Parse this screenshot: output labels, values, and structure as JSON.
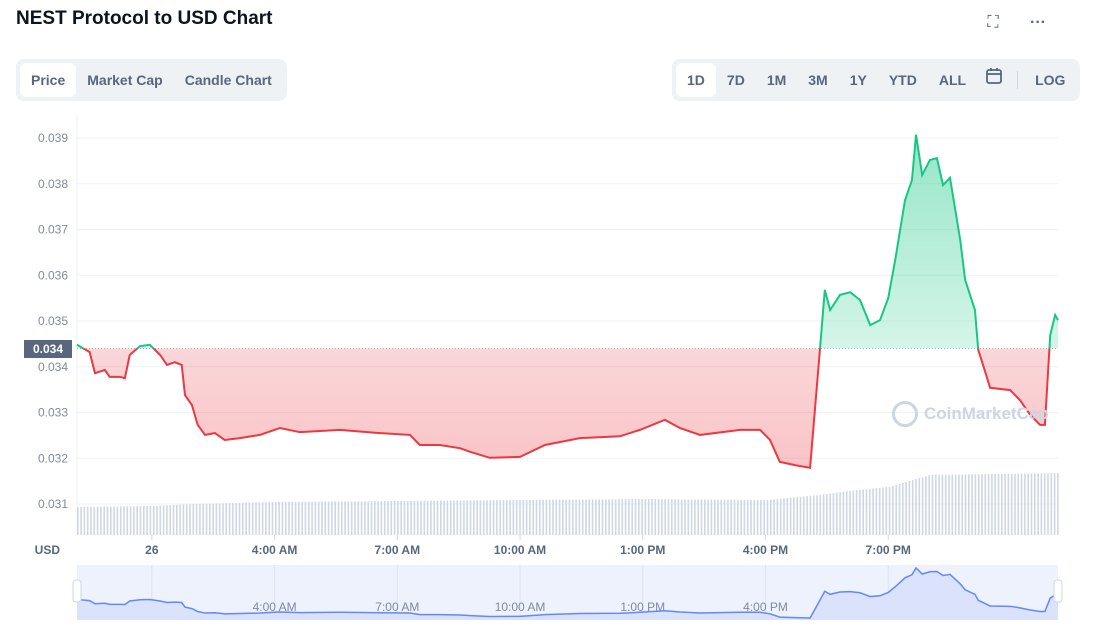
{
  "header": {
    "title": "NEST Protocol to USD Chart",
    "fullscreen_icon": "expand-icon",
    "more_icon": "more-icon"
  },
  "tabs": [
    {
      "label": "Price",
      "active": true
    },
    {
      "label": "Market Cap"
    },
    {
      "label": "Candle Chart"
    }
  ],
  "ranges": [
    {
      "label": "1D",
      "active": true
    },
    {
      "label": "7D"
    },
    {
      "label": "1M"
    },
    {
      "label": "3M"
    },
    {
      "label": "1Y"
    },
    {
      "label": "YTD"
    },
    {
      "label": "ALL"
    }
  ],
  "calendar_icon": "calendar-icon",
  "log_label": "LOG",
  "watermark": "CoinMarketCap",
  "colors": {
    "up": "#16c784",
    "down": "#ea3943",
    "volume": "#cfd6e4",
    "navigator": "#6188ff"
  },
  "chart_data": {
    "type": "line",
    "title": "NEST Protocol to USD Chart",
    "ylabel": "USD",
    "ylim": [
      0.0308,
      0.0395
    ],
    "yticks": [
      "0.039",
      "0.038",
      "0.037",
      "0.036",
      "0.035",
      "0.034",
      "0.033",
      "0.032",
      "0.031"
    ],
    "ytick_values": [
      0.039,
      0.038,
      0.037,
      0.036,
      0.035,
      0.034,
      0.033,
      0.032,
      0.031
    ],
    "xlim_hours": [
      -1.83,
      22.15
    ],
    "xticks": [
      {
        "label": "26",
        "h": 0
      },
      {
        "label": "4:00 AM",
        "h": 3
      },
      {
        "label": "7:00 AM",
        "h": 6
      },
      {
        "label": "10:00 AM",
        "h": 9
      },
      {
        "label": "1:00 PM",
        "h": 12
      },
      {
        "label": "4:00 PM",
        "h": 15
      },
      {
        "label": "7:00 PM",
        "h": 18
      }
    ],
    "baseline": {
      "value": 0.0344,
      "label": "0.034"
    },
    "series": [
      {
        "name": "Price",
        "hours": [
          -1.83,
          -1.52,
          -1.39,
          -1.15,
          -1.03,
          -0.78,
          -0.66,
          -0.54,
          -0.29,
          -0.05,
          0.2,
          0.37,
          0.56,
          0.73,
          0.81,
          0.98,
          1.12,
          1.3,
          1.54,
          1.78,
          2.15,
          2.64,
          3.13,
          3.62,
          4.6,
          5.57,
          6.31,
          6.55,
          7.04,
          7.53,
          7.78,
          8.26,
          9.0,
          9.61,
          10.46,
          11.44,
          11.93,
          12.54,
          12.91,
          13.4,
          14.38,
          14.87,
          15.11,
          15.35,
          15.72,
          16.09,
          16.33,
          16.45,
          16.58,
          16.82,
          17.07,
          17.31,
          17.56,
          17.8,
          18.0,
          18.17,
          18.41,
          18.58,
          18.68,
          18.83,
          19.02,
          19.19,
          19.34,
          19.51,
          19.76,
          19.88,
          20.12,
          20.2,
          20.37,
          20.49,
          20.98,
          21.22,
          21.47,
          21.71,
          21.83,
          21.96,
          22.08,
          22.15
        ],
        "values": [
          0.03448,
          0.03432,
          0.03386,
          0.03393,
          0.03378,
          0.03378,
          0.03375,
          0.03426,
          0.03445,
          0.03448,
          0.03426,
          0.03404,
          0.0341,
          0.03404,
          0.03338,
          0.03316,
          0.03273,
          0.03251,
          0.03255,
          0.0324,
          0.03244,
          0.03251,
          0.03266,
          0.03257,
          0.03262,
          0.03255,
          0.03251,
          0.03229,
          0.03229,
          0.03222,
          0.03214,
          0.03201,
          0.03203,
          0.03229,
          0.03244,
          0.03248,
          0.03262,
          0.03284,
          0.03266,
          0.03251,
          0.03262,
          0.03262,
          0.0324,
          0.03192,
          0.03185,
          0.03179,
          0.03437,
          0.03568,
          0.03524,
          0.03557,
          0.03563,
          0.03546,
          0.03491,
          0.03502,
          0.0355,
          0.03633,
          0.03764,
          0.03808,
          0.03907,
          0.03819,
          0.03852,
          0.03856,
          0.03797,
          0.03813,
          0.03677,
          0.0359,
          0.03524,
          0.03437,
          0.03389,
          0.03354,
          0.03349,
          0.03327,
          0.03295,
          0.03273,
          0.03273,
          0.03469,
          0.03513,
          0.03502
        ]
      }
    ],
    "volume_relative": {
      "hours": [
        -1.83,
        0,
        1,
        2,
        3,
        6,
        9,
        12,
        15,
        16.3,
        17,
        18,
        19,
        22.15
      ],
      "values": [
        28,
        29,
        31,
        32,
        33,
        34,
        35,
        36,
        35,
        40,
        44,
        48,
        60,
        62
      ]
    }
  }
}
